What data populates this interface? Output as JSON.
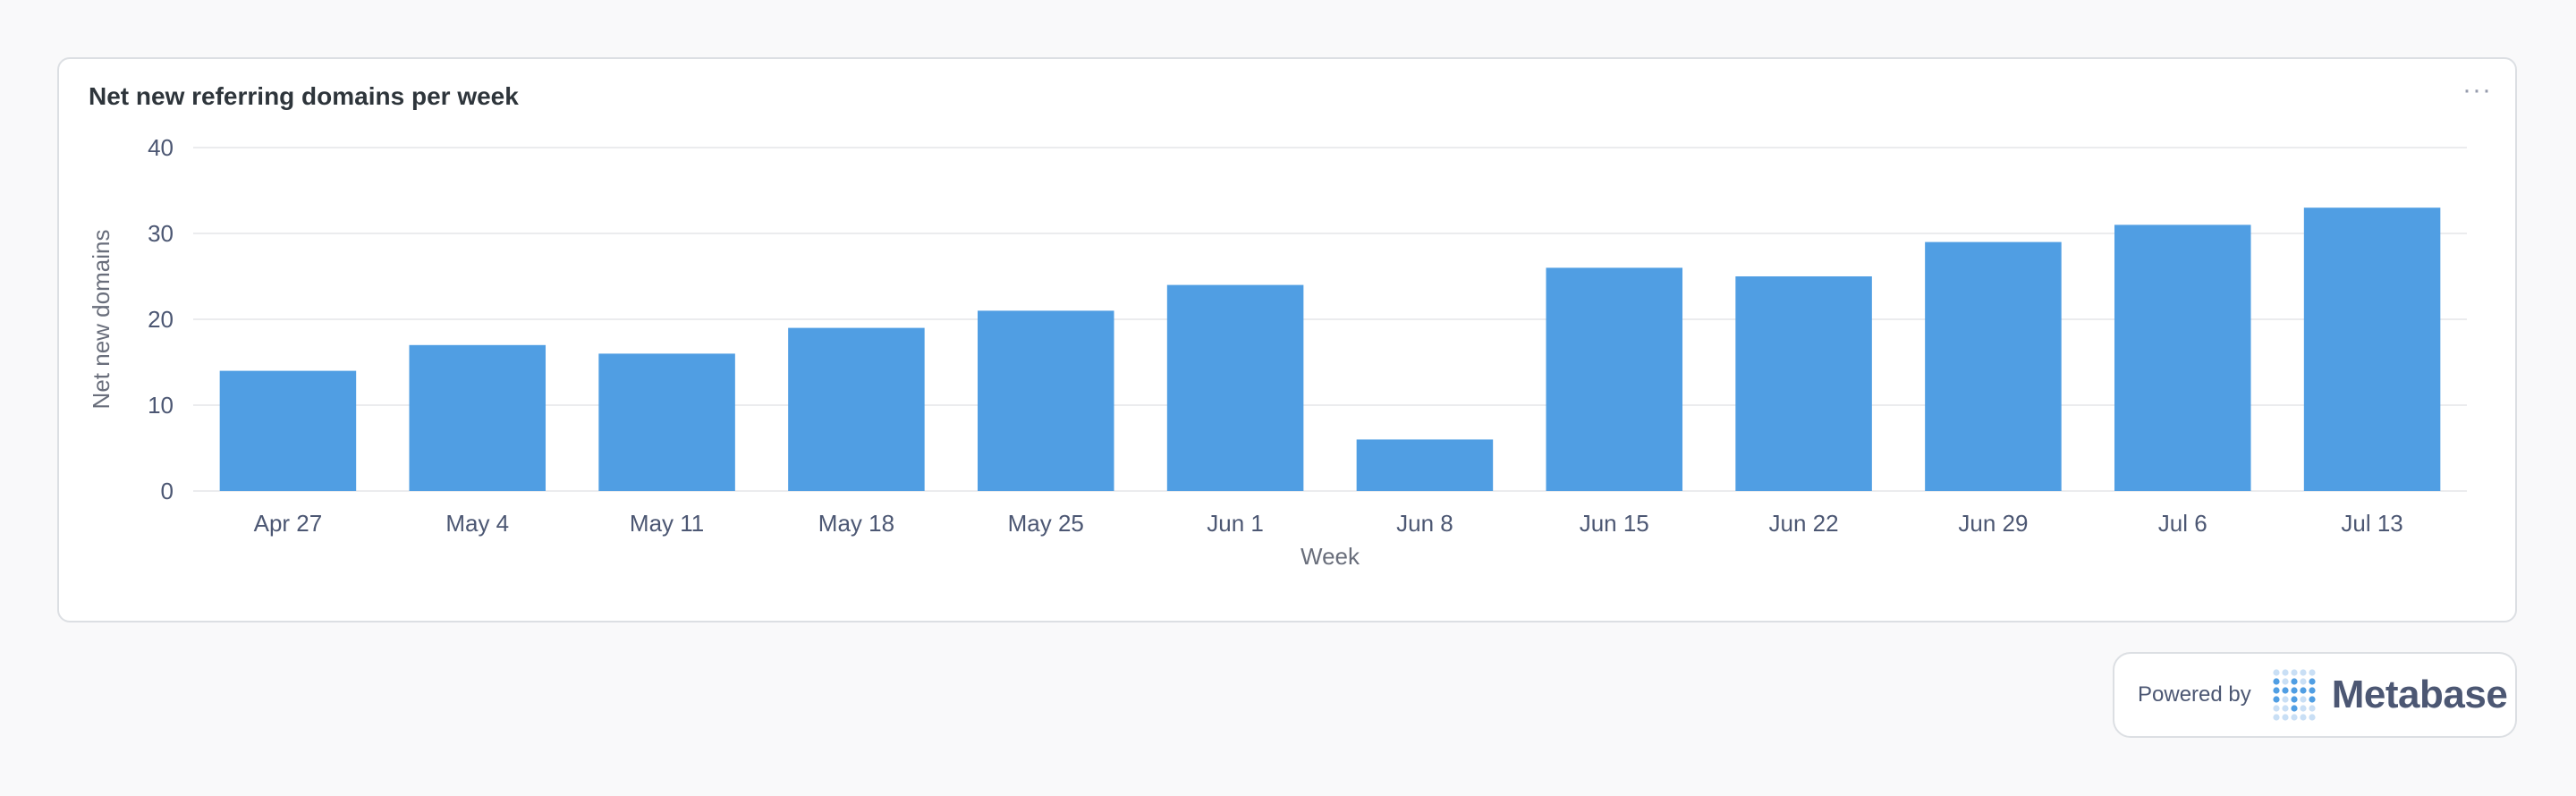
{
  "card": {
    "title": "Net new referring domains per week",
    "menu_icon": "ellipsis-icon",
    "menu_glyph": "···"
  },
  "chart_data": {
    "type": "bar",
    "categories": [
      "Apr 27",
      "May 4",
      "May 11",
      "May 18",
      "May 25",
      "Jun 1",
      "Jun 8",
      "Jun 15",
      "Jun 22",
      "Jun 29",
      "Jul 6",
      "Jul 13"
    ],
    "values": [
      14,
      17,
      16,
      19,
      21,
      24,
      6,
      26,
      25,
      29,
      31,
      33
    ],
    "xlabel": "Week",
    "ylabel": "Net new domains",
    "ylim": [
      0,
      40
    ],
    "yticks": [
      0,
      10,
      20,
      30,
      40
    ],
    "grid": true,
    "bar_color": "#509ee3"
  },
  "footer": {
    "powered_by": "Powered by",
    "brand": "Metabase",
    "logo_icon": "metabase-logo-icon"
  }
}
